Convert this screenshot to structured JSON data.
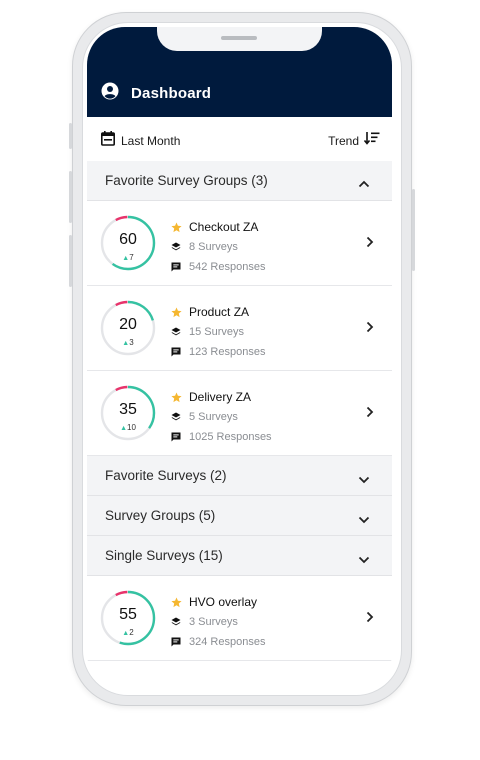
{
  "header": {
    "title": "Dashboard"
  },
  "filter": {
    "period": "Last Month",
    "sort": "Trend"
  },
  "sections": {
    "fav_groups": "Favorite Survey Groups (3)",
    "fav_surveys": "Favorite Surveys (2)",
    "groups": "Survey Groups (5)",
    "single": "Single Surveys (15)"
  },
  "items": [
    {
      "score": "60",
      "delta": "7",
      "name": "Checkout ZA",
      "surveys": "8 Surveys",
      "responses": "542 Responses"
    },
    {
      "score": "20",
      "delta": "3",
      "name": "Product ZA",
      "surveys": "15 Surveys",
      "responses": "123 Responses"
    },
    {
      "score": "35",
      "delta": "10",
      "name": "Delivery ZA",
      "surveys": "5 Surveys",
      "responses": "1025 Responses"
    },
    {
      "score": "55",
      "delta": "2",
      "name": "HVO overlay",
      "surveys": "3 Surveys",
      "responses": "324 Responses"
    }
  ],
  "colors": {
    "header": "#001a3d",
    "gauge_main": "#35c2a2",
    "gauge_accent": "#e8336b",
    "star": "#f5b731"
  },
  "icons": {
    "header": "account-circle-icon",
    "filter": "calendar-icon",
    "sort": "sort-icon",
    "favorite": "star-icon",
    "surveys": "layers-icon",
    "responses": "comment-icon"
  }
}
